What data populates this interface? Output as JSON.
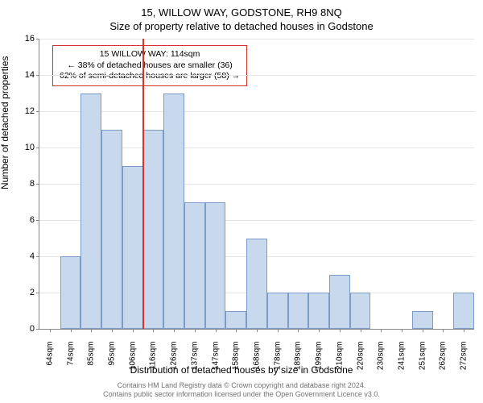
{
  "title": "15, WILLOW WAY, GODSTONE, RH9 8NQ",
  "subtitle": "Size of property relative to detached houses in Godstone",
  "chart": {
    "type": "bar",
    "categories": [
      "64sqm",
      "74sqm",
      "85sqm",
      "95sqm",
      "106sqm",
      "116sqm",
      "126sqm",
      "137sqm",
      "147sqm",
      "158sqm",
      "168sqm",
      "178sqm",
      "189sqm",
      "199sqm",
      "210sqm",
      "220sqm",
      "230sqm",
      "241sqm",
      "251sqm",
      "262sqm",
      "272sqm"
    ],
    "values": [
      0,
      4,
      13,
      11,
      9,
      11,
      13,
      7,
      7,
      1,
      5,
      2,
      2,
      2,
      3,
      2,
      0,
      0,
      1,
      0,
      2
    ],
    "bar_fill": "#c8d9ed",
    "bar_border": "#7a9cc6",
    "ylim": [
      0,
      16
    ],
    "ytick_step": 2,
    "grid_color": "#e5e5e5",
    "marker_position": 5,
    "marker_color": "#d93030",
    "bar_width": 1.0
  },
  "callout": {
    "line1": "15 WILLOW WAY: 114sqm",
    "line2": "← 38% of detached houses are smaller (36)",
    "line3": "62% of semi-detached houses are larger (58) →",
    "border_color": "#d93030"
  },
  "ylabel": "Number of detached properties",
  "xlabel": "Distribution of detached houses by size in Godstone",
  "footer1": "Contains HM Land Registry data © Crown copyright and database right 2024.",
  "footer2": "Contains public sector information licensed under the Open Government Licence v3.0."
}
